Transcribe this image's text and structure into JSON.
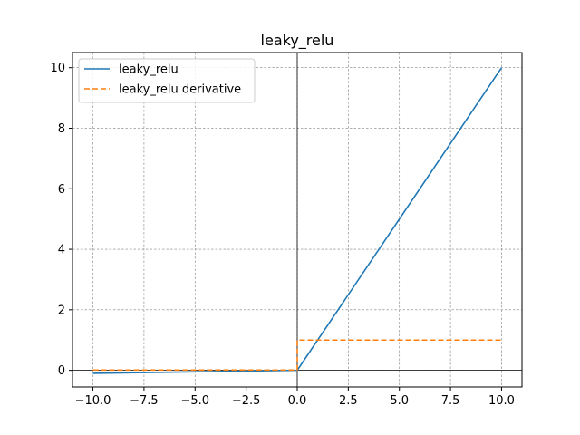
{
  "chart_data": {
    "type": "line",
    "title": "leaky_relu",
    "xlabel": "",
    "ylabel": "",
    "xlim": [
      -11,
      11
    ],
    "ylim": [
      -0.55,
      10.5
    ],
    "xticks": [
      -10.0,
      -7.5,
      -5.0,
      -2.5,
      0.0,
      2.5,
      5.0,
      7.5,
      10.0
    ],
    "xtick_labels": [
      "−10.0",
      "−7.5",
      "−5.0",
      "−2.5",
      "0.0",
      "2.5",
      "5.0",
      "7.5",
      "10.0"
    ],
    "yticks": [
      0,
      2,
      4,
      6,
      8,
      10
    ],
    "ytick_labels": [
      "0",
      "2",
      "4",
      "6",
      "8",
      "10"
    ],
    "grid": true,
    "axis_lines_at_origin": true,
    "legend": "top-left",
    "series": [
      {
        "name": "leaky_relu",
        "color": "#1f77b4",
        "style": "solid",
        "x": [
          -10,
          0,
          10
        ],
        "y": [
          -0.1,
          0,
          10
        ]
      },
      {
        "name": "leaky_relu derivative",
        "color": "#ff7f0e",
        "style": "dashed",
        "x": [
          -10,
          0,
          0,
          10
        ],
        "y": [
          0.01,
          0.01,
          1,
          1
        ]
      }
    ]
  }
}
